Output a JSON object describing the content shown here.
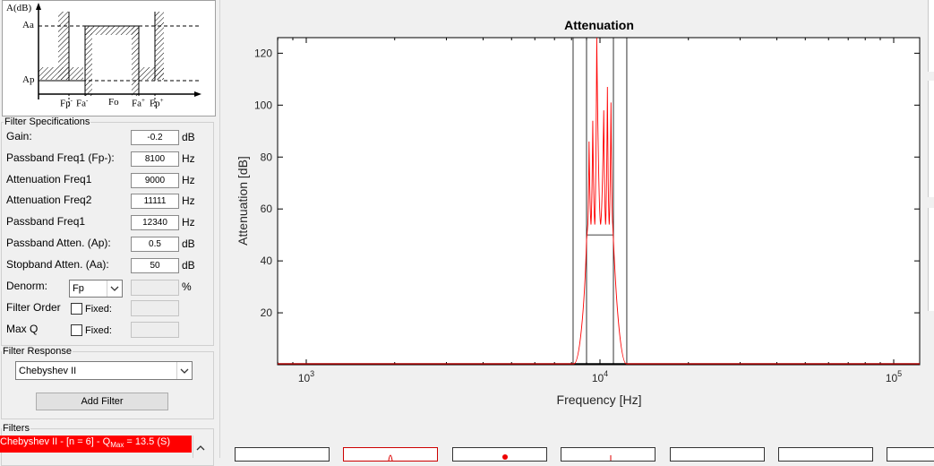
{
  "diagram": {
    "y_axis_label": "A(dB)",
    "aa_label": "Aa",
    "ap_label": "Ap",
    "x_labels": [
      "Fp",
      "Fa",
      "Fo",
      "Fa",
      "Fp"
    ],
    "x_superscripts": [
      "-",
      "-",
      "",
      "+",
      "+"
    ]
  },
  "filter_specifications": {
    "title": "Filter Specifications",
    "fields": [
      {
        "label": "Gain:",
        "value": "-0.2",
        "unit": "dB"
      },
      {
        "label": "Passband Freq1 (Fp-):",
        "value": "8100",
        "unit": "Hz"
      },
      {
        "label": "Attenuation Freq1",
        "value": "9000",
        "unit": "Hz"
      },
      {
        "label": "Attenuation Freq2",
        "value": "11111",
        "unit": "Hz"
      },
      {
        "label": "Passband Freq1",
        "value": "12340",
        "unit": "Hz"
      },
      {
        "label": "Passband Atten. (Ap):",
        "value": "0.5",
        "unit": "dB"
      },
      {
        "label": "Stopband Atten. (Aa):",
        "value": "50",
        "unit": "dB"
      }
    ],
    "denorm": {
      "label": "Denorm:",
      "value": "Fp",
      "unit": "%"
    },
    "filter_order": {
      "label": "Filter Order",
      "fixed_label": "Fixed:"
    },
    "max_q": {
      "label": "Max Q",
      "fixed_label": "Fixed:"
    }
  },
  "filter_response": {
    "title": "Filter Response",
    "selected": "Chebyshev II",
    "add_button": "Add Filter"
  },
  "filters": {
    "title": "Filters",
    "items": [
      {
        "text_prefix": "Chebyshev II - [n = 6] - Q",
        "subscript": "Max",
        "text_suffix": " = 13.5 (S)",
        "color": "#ff0000"
      }
    ]
  },
  "chart_data": {
    "type": "line",
    "title": "Attenuation",
    "xlabel": "Frequency [Hz]",
    "ylabel": "Attenuation [dB]",
    "xscale": "log",
    "xlim": [
      700,
      13500
    ],
    "ylim": [
      0,
      126
    ],
    "x_ticks": [
      {
        "value": 1000,
        "base": "10",
        "exp": "3"
      },
      {
        "value": 10000,
        "base": "10",
        "exp": "4"
      },
      {
        "value": 100000,
        "base": "10",
        "exp": "5"
      }
    ],
    "y_ticks": [
      20,
      40,
      60,
      80,
      100,
      120
    ],
    "colors": {
      "response": "#ff0000",
      "mask": "#000000"
    },
    "mask": {
      "passband_lo": 8100,
      "atten_lo": 9000,
      "atten_hi": 11111,
      "passband_hi": 12340,
      "stopband_atten": 50
    },
    "response_peaks": [
      {
        "x": 9180,
        "y": 86
      },
      {
        "x": 9450,
        "y": 94
      },
      {
        "x": 9750,
        "y": 126
      },
      {
        "x": 10300,
        "y": 98
      },
      {
        "x": 10600,
        "y": 107
      },
      {
        "x": 10900,
        "y": 101
      }
    ]
  }
}
